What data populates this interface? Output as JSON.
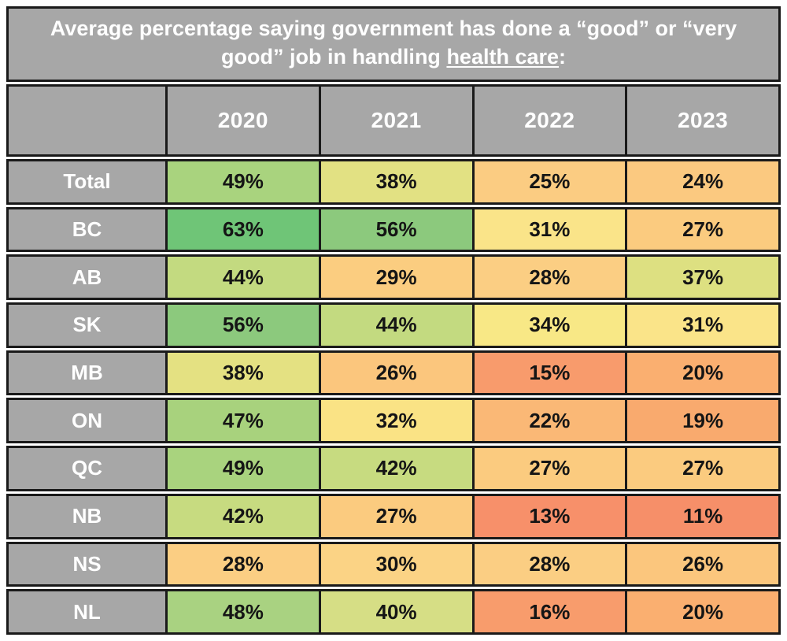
{
  "title": {
    "full": "Average percentage saying government has done a “good” or “very good” job in handling health care:",
    "before": "Average percentage saying government has done a “good” or “very good” job in handling ",
    "underlined": "health care",
    "suffix": ":"
  },
  "value_suffix": "%",
  "colors": {
    "header_bg": "#a7a7a7",
    "header_text": "#ffffff",
    "border": "#1a1a1a",
    "value_text": "#151515",
    "page_bg": "#ffffff"
  },
  "chart_data": {
    "type": "heatmap",
    "title": "Average percentage saying government has done a “good” or “very good” job in handling health care:",
    "columns": [
      "2020",
      "2021",
      "2022",
      "2023"
    ],
    "rows": [
      "Total",
      "BC",
      "AB",
      "SK",
      "MB",
      "ON",
      "QC",
      "NB",
      "NS",
      "NL"
    ],
    "values": [
      [
        49,
        38,
        25,
        24
      ],
      [
        63,
        56,
        31,
        27
      ],
      [
        44,
        29,
        28,
        37
      ],
      [
        56,
        44,
        34,
        31
      ],
      [
        38,
        26,
        15,
        20
      ],
      [
        47,
        32,
        22,
        19
      ],
      [
        49,
        42,
        27,
        27
      ],
      [
        42,
        27,
        13,
        11
      ],
      [
        28,
        30,
        28,
        26
      ],
      [
        48,
        40,
        16,
        20
      ]
    ],
    "cell_colors": [
      [
        "#a9d37e",
        "#e2e183",
        "#fbcc82",
        "#fbc980"
      ],
      [
        "#6fc577",
        "#8cc97d",
        "#fae489",
        "#fbcb7f"
      ],
      [
        "#c3da80",
        "#fbcd80",
        "#fbce83",
        "#dde081"
      ],
      [
        "#8cc97d",
        "#c3da80",
        "#f8e886",
        "#fae489"
      ],
      [
        "#e4e182",
        "#fbc67d",
        "#f89b6c",
        "#faaf70"
      ],
      [
        "#a8d27d",
        "#fae385",
        "#fab876",
        "#f9aa6e"
      ],
      [
        "#a9d37e",
        "#c7db80",
        "#fbcb7f",
        "#fbcb7f"
      ],
      [
        "#c7db80",
        "#fbcb7f",
        "#f7906a",
        "#f68f69"
      ],
      [
        "#fbce83",
        "#fbd385",
        "#fbce83",
        "#fbc67d"
      ],
      [
        "#a9d281",
        "#d6de85",
        "#f89c6c",
        "#faaf70"
      ]
    ],
    "legend": "color scale green (high) to red (low)",
    "grid": true
  }
}
